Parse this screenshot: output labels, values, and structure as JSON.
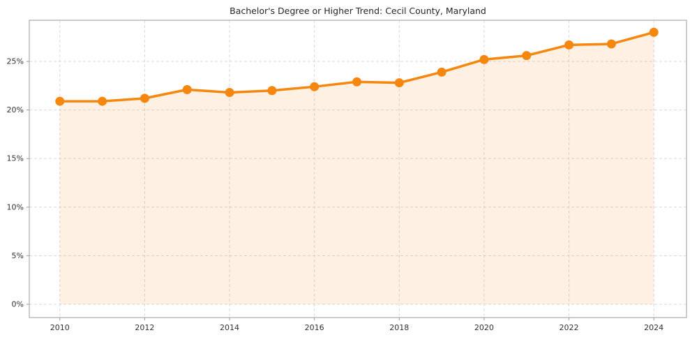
{
  "chart_data": {
    "type": "line",
    "title": "Bachelor's Degree or Higher Trend: Cecil County, Maryland",
    "xlabel": "",
    "ylabel": "",
    "x": [
      2010,
      2011,
      2012,
      2013,
      2014,
      2015,
      2016,
      2017,
      2018,
      2019,
      2020,
      2021,
      2022,
      2023,
      2024
    ],
    "values": [
      20.9,
      20.9,
      21.2,
      22.1,
      21.8,
      22.0,
      22.4,
      22.9,
      22.8,
      23.9,
      25.2,
      25.6,
      26.7,
      26.8,
      28.0
    ],
    "xticks": [
      2010,
      2012,
      2014,
      2016,
      2018,
      2020,
      2022,
      2024
    ],
    "xtick_labels": [
      "2010",
      "2012",
      "2014",
      "2016",
      "2018",
      "2020",
      "2022",
      "2024"
    ],
    "yticks": [
      0,
      5,
      10,
      15,
      20,
      25
    ],
    "ytick_labels": [
      "0%",
      "5%",
      "10%",
      "15%",
      "20%",
      "25%"
    ],
    "xlim": [
      2009.28,
      2024.77
    ],
    "ylim": [
      -1.37,
      29.24
    ],
    "grid": "dashed",
    "legend": "none",
    "line_color": "#f5870e",
    "fill_color": "rgba(245,135,14,0.12)",
    "grid_color": "#d9d9d9",
    "axis_color": "#9a9a9a",
    "text_color": "#303030"
  }
}
